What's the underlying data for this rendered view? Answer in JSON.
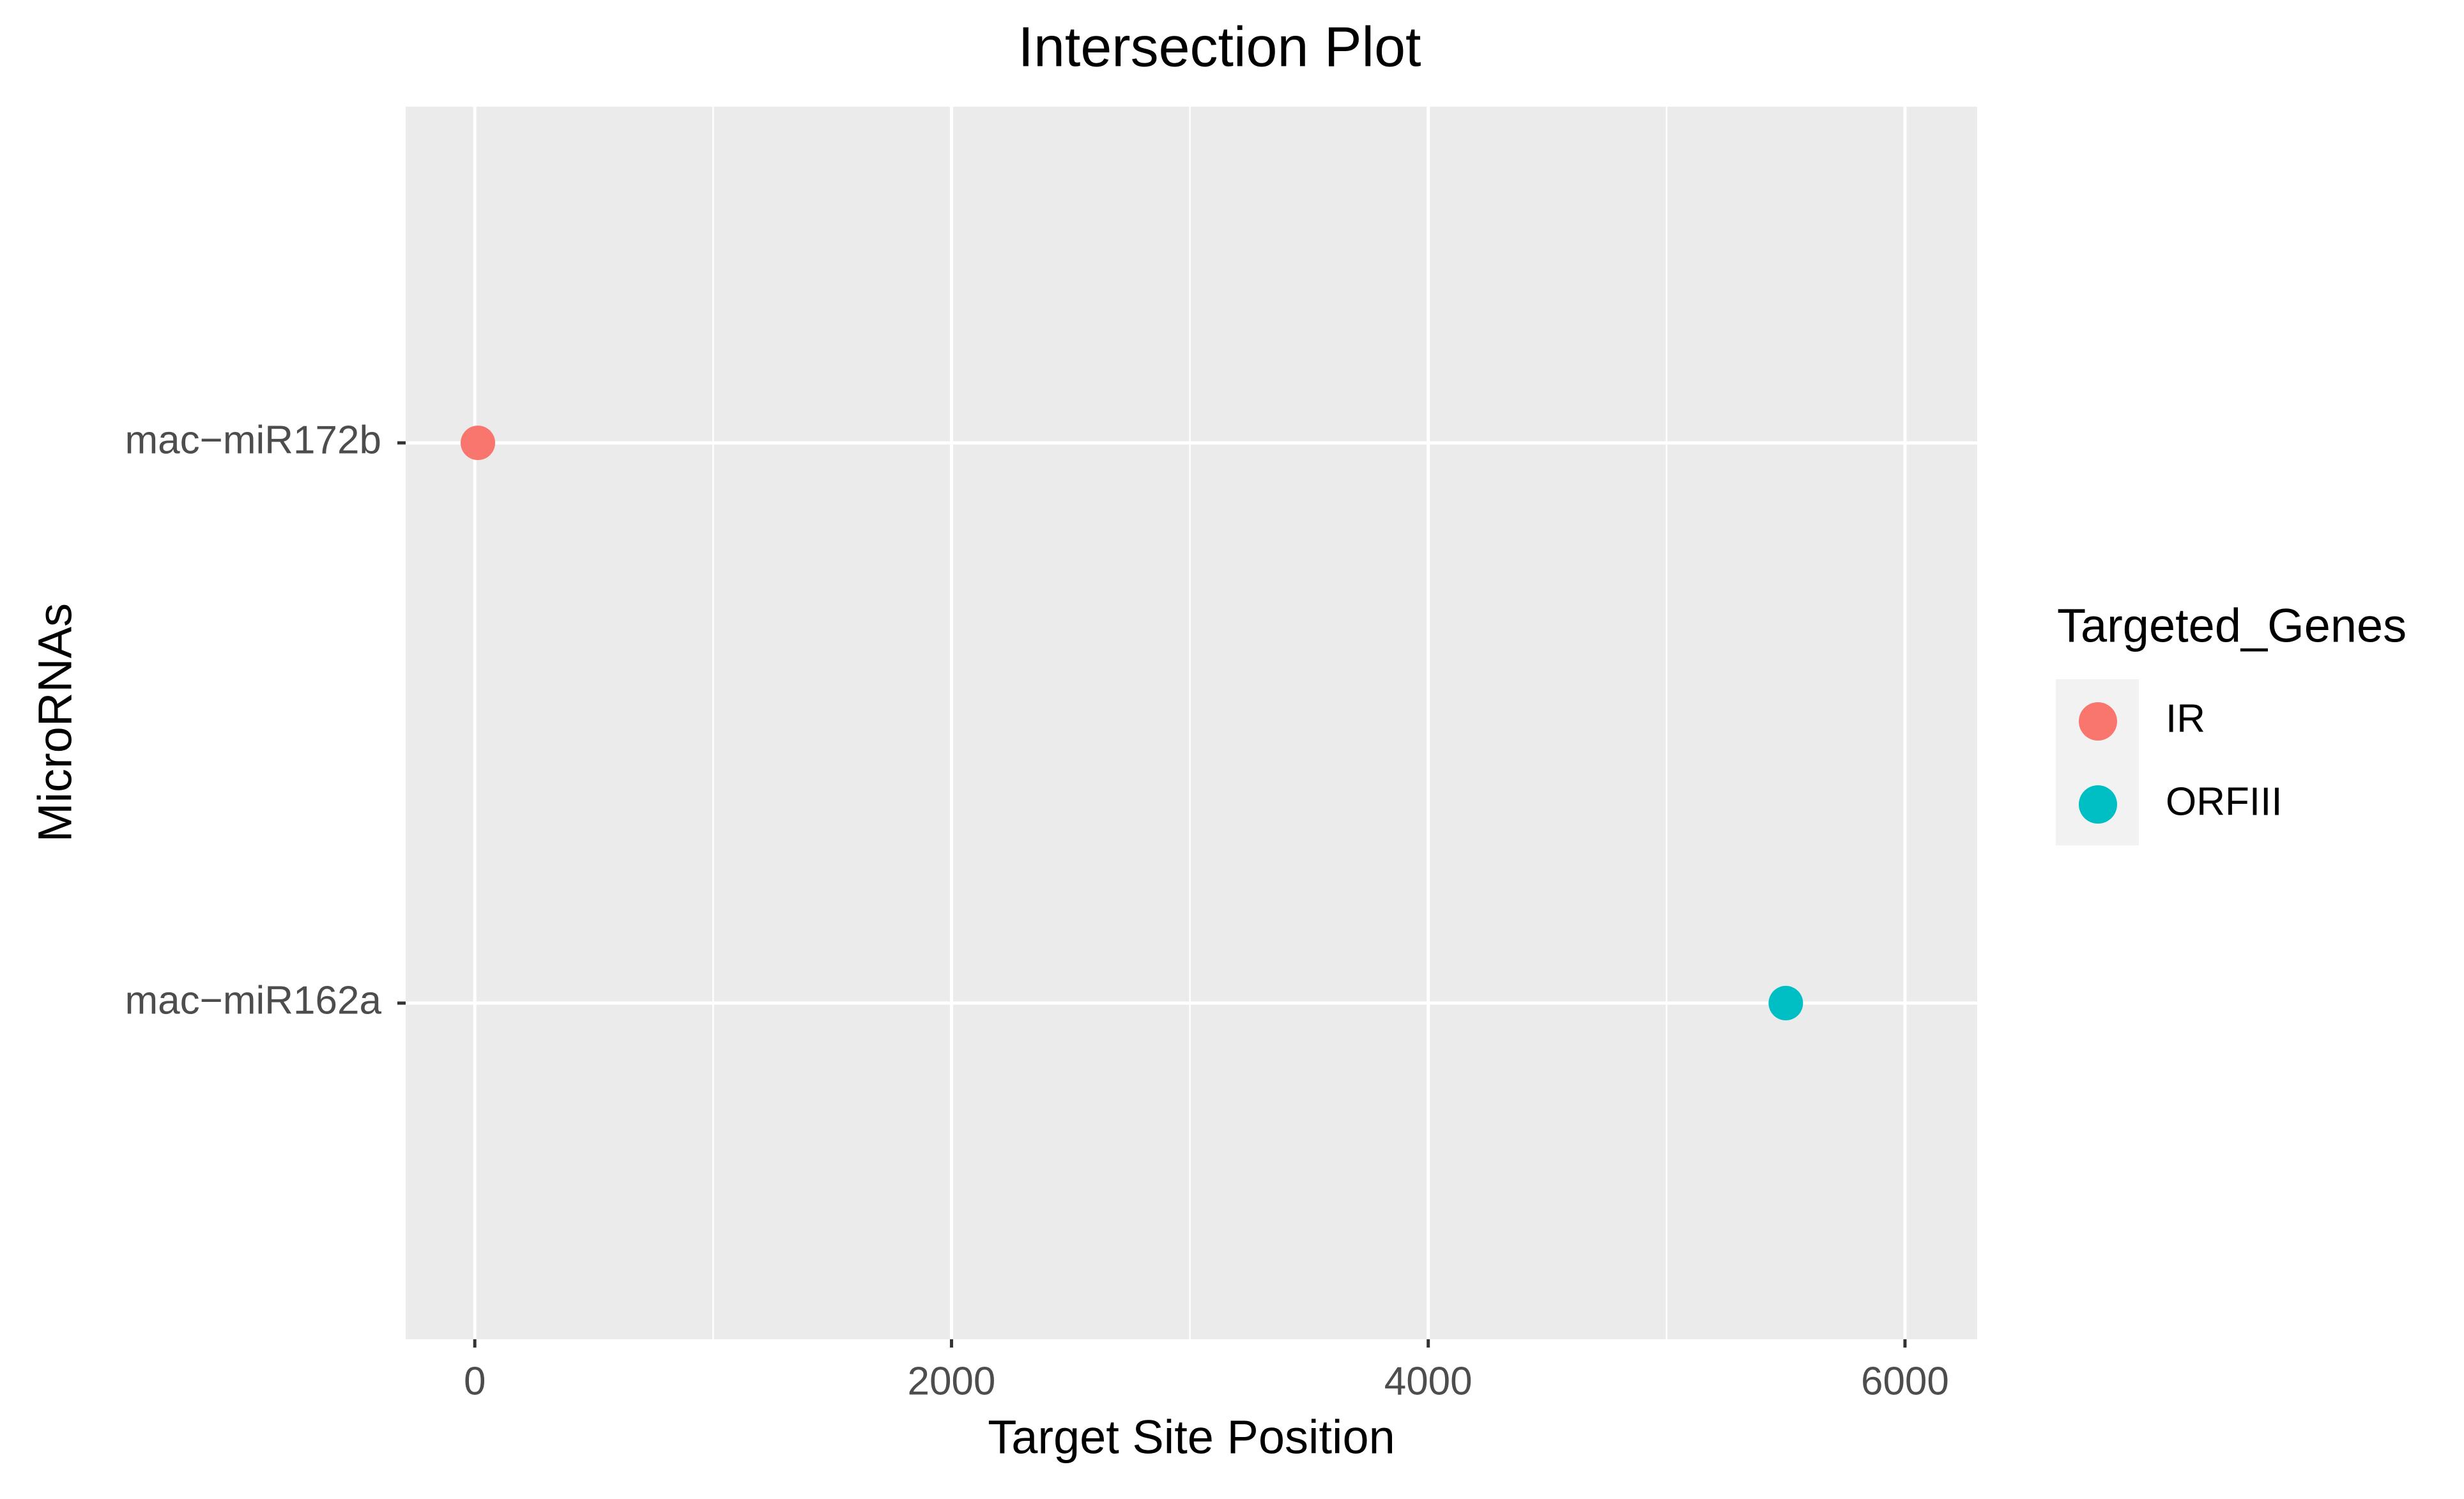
{
  "chart_data": {
    "type": "scatter",
    "title": "Intersection Plot",
    "x_label": "Target Site Position",
    "y_label": "MicroRNAs",
    "categories": [
      "mac−miR162a",
      "mac−miR172b"
    ],
    "series": [
      {
        "name": "IR",
        "color": "#F8766D",
        "values": [
          null,
          13
        ]
      },
      {
        "name": "ORFIII",
        "color": "#00BFC4",
        "values": [
          5500,
          null
        ]
      }
    ],
    "xlim": [
      -290,
      6303
    ],
    "xticks": [
      0,
      2000,
      4000,
      6000
    ],
    "xminor": [
      1000,
      3000,
      5000
    ],
    "grid": true,
    "legend_title": "Targeted_Genes",
    "legend": "right"
  }
}
